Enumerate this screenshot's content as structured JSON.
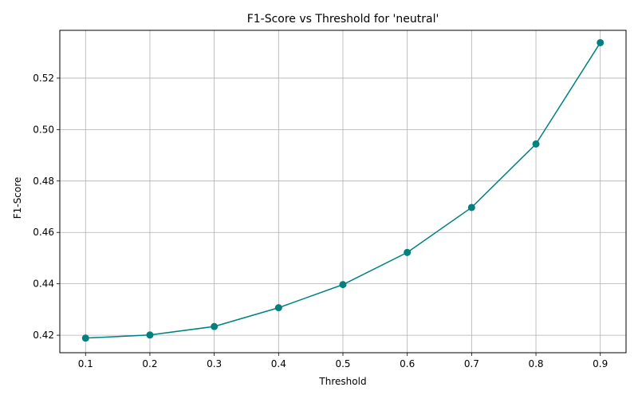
{
  "chart_data": {
    "type": "line",
    "title": "F1-Score vs Threshold for 'neutral'",
    "xlabel": "Threshold",
    "ylabel": "F1-Score",
    "x": [
      0.1,
      0.2,
      0.3,
      0.4,
      0.5,
      0.6,
      0.7,
      0.8,
      0.9
    ],
    "series": [
      {
        "values": [
          0.4189,
          0.4201,
          0.4234,
          0.4307,
          0.4397,
          0.4522,
          0.4697,
          0.4944,
          0.5338
        ],
        "color": "#008080",
        "marker": "circle"
      }
    ],
    "xticks": [
      "0.1",
      "0.2",
      "0.3",
      "0.4",
      "0.5",
      "0.6",
      "0.7",
      "0.8",
      "0.9"
    ],
    "yticks": [
      "0.42",
      "0.44",
      "0.46",
      "0.48",
      "0.50",
      "0.52"
    ],
    "xlim": [
      0.06,
      0.94
    ],
    "ylim": [
      0.4132,
      0.5386
    ],
    "grid": true,
    "grid_color": "#b0b0b0"
  }
}
